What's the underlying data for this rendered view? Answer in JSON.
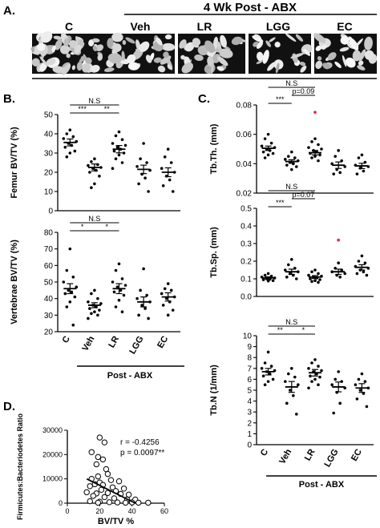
{
  "panel_a": {
    "letter": "A.",
    "header": "4 Wk Post - ABX",
    "groups": [
      "C",
      "Veh",
      "LR",
      "LGG",
      "EC"
    ]
  },
  "panel_b": {
    "letter": "B."
  },
  "panel_c": {
    "letter": "C."
  },
  "panel_d": {
    "letter": "D."
  },
  "post_abx_label": "Post - ABX",
  "chart_data": [
    {
      "id": "femur",
      "type": "scatter",
      "ylabel": "Femur BV/TV (%)",
      "categories": [
        "C",
        "Veh",
        "LR",
        "LGG",
        "EC"
      ],
      "ylim": [
        0,
        50
      ],
      "yticks": [
        0,
        10,
        20,
        30,
        40,
        50
      ],
      "means": [
        35.5,
        22.5,
        32,
        21.5,
        20
      ],
      "sems": [
        1.8,
        1.8,
        1.9,
        2.2,
        2.3
      ],
      "points": [
        [
          42,
          40,
          38.5,
          37.5,
          36,
          35,
          34,
          33,
          31,
          30,
          28
        ],
        [
          27,
          25.5,
          24,
          23.5,
          22.5,
          22,
          21,
          20,
          18,
          14,
          12
        ],
        [
          41,
          39,
          37,
          35,
          34,
          33,
          32,
          31,
          30,
          29,
          27,
          25,
          22
        ],
        [
          35,
          27,
          25,
          23,
          21,
          19,
          17,
          14,
          10
        ],
        [
          32,
          28,
          25,
          22,
          20,
          18,
          16,
          13,
          10
        ]
      ],
      "annotations": [
        {
          "from": 0,
          "to": 1,
          "level": 1,
          "text": "***"
        },
        {
          "from": 1,
          "to": 2,
          "level": 1,
          "text": "**"
        },
        {
          "from": 0,
          "to": 2,
          "level": 2,
          "text": "N.S"
        }
      ]
    },
    {
      "id": "vertebrae",
      "type": "scatter",
      "ylabel": "Vertebrae BV/TV (%)",
      "categories": [
        "C",
        "Veh",
        "LR",
        "LGG",
        "EC"
      ],
      "ylim": [
        20,
        80
      ],
      "yticks": [
        20,
        30,
        40,
        50,
        60,
        70,
        80
      ],
      "means": [
        46,
        36,
        46,
        38,
        41
      ],
      "sems": [
        3,
        1.5,
        3,
        3,
        2.5
      ],
      "points": [
        [
          70,
          57,
          53,
          50,
          47,
          45,
          44,
          43,
          41,
          38,
          35,
          24
        ],
        [
          45,
          43,
          40,
          38,
          37,
          36,
          35,
          34,
          33,
          32,
          31,
          30,
          28
        ],
        [
          61,
          57,
          52,
          50,
          48,
          47,
          45,
          44,
          42,
          39,
          35,
          32
        ],
        [
          58,
          45,
          42,
          40,
          38,
          36,
          34,
          30,
          28
        ],
        [
          49,
          46,
          45,
          43,
          41,
          40,
          38,
          36,
          33,
          30
        ]
      ],
      "annotations": [
        {
          "from": 0,
          "to": 1,
          "level": 1,
          "text": "*"
        },
        {
          "from": 1,
          "to": 2,
          "level": 1,
          "text": "*"
        },
        {
          "from": 0,
          "to": 2,
          "level": 2,
          "text": "N.S"
        }
      ]
    },
    {
      "id": "tbth",
      "type": "scatter",
      "ylabel": "Tb.Th. (mm)",
      "categories": [
        "C",
        "Veh",
        "LR",
        "LGG",
        "EC"
      ],
      "ylim": [
        0.02,
        0.08
      ],
      "yticks": [
        0.02,
        0.04,
        0.06,
        0.08
      ],
      "means": [
        0.0505,
        0.0415,
        0.0475,
        0.039,
        0.0385
      ],
      "sems": [
        0.0015,
        0.0012,
        0.0015,
        0.0022,
        0.0018
      ],
      "points": [
        [
          0.06,
          0.057,
          0.054,
          0.052,
          0.051,
          0.05,
          0.049,
          0.048,
          0.047,
          0.046,
          0.044
        ],
        [
          0.048,
          0.045,
          0.044,
          0.043,
          0.042,
          0.041,
          0.04,
          0.039,
          0.038,
          0.036
        ],
        [
          0.057,
          0.055,
          0.053,
          0.051,
          0.05,
          0.049,
          0.048,
          0.047,
          0.046,
          0.045,
          0.044,
          0.042
        ],
        [
          0.049,
          0.045,
          0.042,
          0.04,
          0.038,
          0.036,
          0.034,
          0.033
        ],
        [
          0.046,
          0.044,
          0.041,
          0.039,
          0.038,
          0.037,
          0.035,
          0.033
        ]
      ],
      "outliers": [
        {
          "group": 2,
          "value": 0.075
        }
      ],
      "outlier_color": "#d6334a",
      "annotations": [
        {
          "from": 0,
          "to": 1,
          "level": 1,
          "text": "***"
        },
        {
          "from": 1,
          "to": 2,
          "level": 2,
          "text": "p=0.09"
        },
        {
          "from": 0,
          "to": 2,
          "level": 3,
          "text": "N.S"
        }
      ]
    },
    {
      "id": "tbsp",
      "type": "scatter",
      "ylabel": "Tb.Sp. (mm)",
      "categories": [
        "C",
        "Veh",
        "LR",
        "LGG",
        "EC"
      ],
      "ylim": [
        0.0,
        0.5
      ],
      "yticks": [
        0.0,
        0.1,
        0.2,
        0.3,
        0.4,
        0.5
      ],
      "means": [
        0.105,
        0.14,
        0.11,
        0.14,
        0.165
      ],
      "sems": [
        0.006,
        0.015,
        0.008,
        0.015,
        0.015
      ],
      "points": [
        [
          0.13,
          0.12,
          0.115,
          0.11,
          0.105,
          0.1,
          0.098,
          0.095,
          0.09,
          0.088
        ],
        [
          0.21,
          0.18,
          0.16,
          0.15,
          0.14,
          0.13,
          0.12,
          0.11,
          0.1
        ],
        [
          0.15,
          0.14,
          0.13,
          0.12,
          0.115,
          0.11,
          0.105,
          0.1,
          0.095,
          0.09,
          0.085,
          0.08
        ],
        [
          0.19,
          0.16,
          0.15,
          0.14,
          0.13,
          0.12,
          0.11
        ],
        [
          0.23,
          0.2,
          0.19,
          0.17,
          0.16,
          0.15,
          0.14,
          0.13,
          0.12
        ]
      ],
      "outliers": [
        {
          "group": 3,
          "value": 0.32
        }
      ],
      "outlier_color": "#d6334a",
      "annotations": [
        {
          "from": 0,
          "to": 1,
          "level": 1,
          "text": "***"
        },
        {
          "from": 1,
          "to": 2,
          "level": 2,
          "text": "p=0.07"
        },
        {
          "from": 0,
          "to": 2,
          "level": 3,
          "text": "N.S"
        }
      ]
    },
    {
      "id": "tbn",
      "type": "scatter",
      "ylabel": "Tb.N (1/mm)",
      "categories": [
        "C",
        "Veh",
        "LR",
        "LGG",
        "EC"
      ],
      "ylim": [
        0,
        10
      ],
      "yticks": [
        0,
        1,
        2,
        3,
        4,
        5,
        6,
        7,
        8,
        9,
        10
      ],
      "means": [
        6.7,
        5.3,
        6.6,
        5.3,
        5.2
      ],
      "sems": [
        0.3,
        0.5,
        0.3,
        0.45,
        0.4
      ],
      "points": [
        [
          8.5,
          7.5,
          7.2,
          7,
          6.8,
          6.7,
          6.5,
          6.3,
          6,
          5.8,
          5.5
        ],
        [
          7,
          6.5,
          6.2,
          5.8,
          5.5,
          5,
          4.5,
          3.8,
          2.8
        ],
        [
          7.8,
          7.5,
          7.2,
          7,
          6.8,
          6.7,
          6.5,
          6.3,
          6.2,
          6,
          5.8,
          5.5,
          5.2
        ],
        [
          6.7,
          6,
          5.8,
          5.5,
          5.2,
          4.8,
          3.8,
          2.9
        ],
        [
          6.5,
          6,
          5.8,
          5.5,
          5.2,
          5,
          4.7,
          4.2,
          3.5
        ]
      ],
      "annotations": [
        {
          "from": 0,
          "to": 1,
          "level": 1,
          "text": "**"
        },
        {
          "from": 1,
          "to": 2,
          "level": 1,
          "text": "*"
        },
        {
          "from": 0,
          "to": 2,
          "level": 2,
          "text": "N.S"
        }
      ]
    },
    {
      "id": "correlation",
      "type": "scatter",
      "xlabel": "BV/TV %",
      "ylabel": "Firmicutes:Bacteriodetes Ratio",
      "xlim": [
        0,
        60
      ],
      "ylim": [
        0,
        30000
      ],
      "xticks": [
        0,
        20,
        40,
        60
      ],
      "yticks": [
        0,
        10000,
        20000,
        30000
      ],
      "r_text": "r = -0.4256",
      "p_text": "p = 0.0097**",
      "fit": {
        "x": [
          12,
          42
        ],
        "y": [
          10000,
          0
        ]
      },
      "points": [
        [
          20,
          27000
        ],
        [
          23,
          25000
        ],
        [
          15,
          21000
        ],
        [
          19,
          19000
        ],
        [
          22,
          18000
        ],
        [
          18,
          16000
        ],
        [
          24,
          14000
        ],
        [
          25,
          12000
        ],
        [
          19,
          11000
        ],
        [
          15,
          10000
        ],
        [
          27,
          9500
        ],
        [
          32,
          9000
        ],
        [
          20,
          8500
        ],
        [
          17,
          7800
        ],
        [
          22,
          7500
        ],
        [
          14,
          7000
        ],
        [
          28,
          6500
        ],
        [
          35,
          6000
        ],
        [
          21,
          5500
        ],
        [
          30,
          5000
        ],
        [
          12,
          4500
        ],
        [
          25,
          4200
        ],
        [
          18,
          4000
        ],
        [
          33,
          3800
        ],
        [
          38,
          3500
        ],
        [
          16,
          3000
        ],
        [
          23,
          2500
        ],
        [
          29,
          2000
        ],
        [
          37,
          1500
        ],
        [
          42,
          1500
        ],
        [
          14,
          800
        ],
        [
          20,
          600
        ],
        [
          26,
          400
        ],
        [
          31,
          300
        ],
        [
          36,
          200
        ],
        [
          40,
          300
        ],
        [
          44,
          200
        ],
        [
          50,
          200
        ],
        [
          19,
          200
        ]
      ]
    }
  ]
}
